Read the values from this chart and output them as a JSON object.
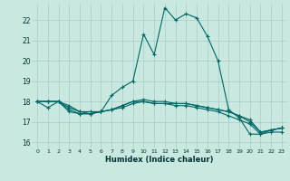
{
  "xlabel": "Humidex (Indice chaleur)",
  "background_color": "#c8e8e0",
  "grid_color": "#a8cccc",
  "line_color": "#006666",
  "xlim": [
    -0.5,
    23.5
  ],
  "ylim": [
    15.7,
    22.8
  ],
  "yticks": [
    16,
    17,
    18,
    19,
    20,
    21,
    22
  ],
  "xticks": [
    0,
    1,
    2,
    3,
    4,
    5,
    6,
    7,
    8,
    9,
    10,
    11,
    12,
    13,
    14,
    15,
    16,
    17,
    18,
    19,
    20,
    21,
    22,
    23
  ],
  "lines": [
    [
      18.0,
      17.7,
      18.0,
      17.5,
      17.4,
      17.4,
      17.5,
      18.3,
      18.7,
      19.0,
      21.3,
      20.3,
      22.6,
      22.0,
      22.3,
      22.1,
      21.2,
      20.0,
      17.6,
      17.2,
      16.4,
      16.4,
      16.6,
      16.7
    ],
    [
      18.0,
      18.0,
      18.0,
      17.6,
      17.4,
      17.4,
      17.5,
      17.6,
      17.7,
      17.9,
      18.0,
      17.9,
      17.9,
      17.8,
      17.8,
      17.7,
      17.6,
      17.5,
      17.3,
      17.1,
      16.9,
      16.4,
      16.5,
      16.5
    ],
    [
      18.0,
      18.0,
      18.0,
      17.7,
      17.5,
      17.4,
      17.5,
      17.6,
      17.8,
      18.0,
      18.1,
      18.0,
      18.0,
      17.9,
      17.9,
      17.8,
      17.7,
      17.6,
      17.5,
      17.3,
      17.1,
      16.5,
      16.6,
      16.7
    ],
    [
      18.0,
      18.0,
      18.0,
      17.8,
      17.5,
      17.5,
      17.5,
      17.6,
      17.8,
      18.0,
      18.0,
      17.9,
      17.9,
      17.9,
      17.9,
      17.8,
      17.7,
      17.6,
      17.5,
      17.3,
      17.0,
      16.5,
      16.6,
      16.7
    ]
  ]
}
